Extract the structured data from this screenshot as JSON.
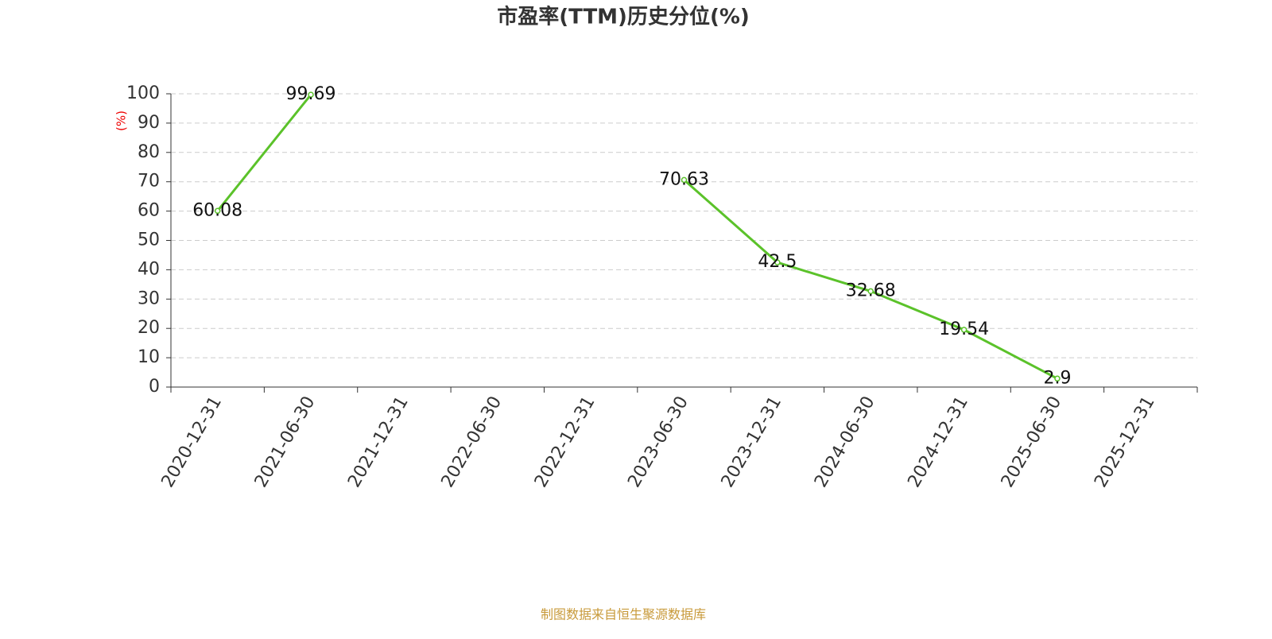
{
  "chart_data": {
    "type": "line",
    "title": "市盈率(TTM)历史分位(%)",
    "y_label": "(%)",
    "categories": [
      "2020-12-31",
      "2021-06-30",
      "2021-12-31",
      "2022-06-30",
      "2022-12-31",
      "2023-06-30",
      "2023-12-31",
      "2024-06-30",
      "2024-12-31",
      "2025-06-30",
      "2025-12-31"
    ],
    "values": [
      60.08,
      99.69,
      null,
      null,
      null,
      70.63,
      42.5,
      32.68,
      19.54,
      2.9,
      null
    ],
    "color": "#5bc22a",
    "ylim": [
      0,
      100
    ],
    "yticks": [
      0,
      10,
      20,
      30,
      40,
      50,
      60,
      70,
      80,
      90,
      100
    ],
    "grid": true,
    "source": "制图数据来自恒生聚源数据库"
  }
}
